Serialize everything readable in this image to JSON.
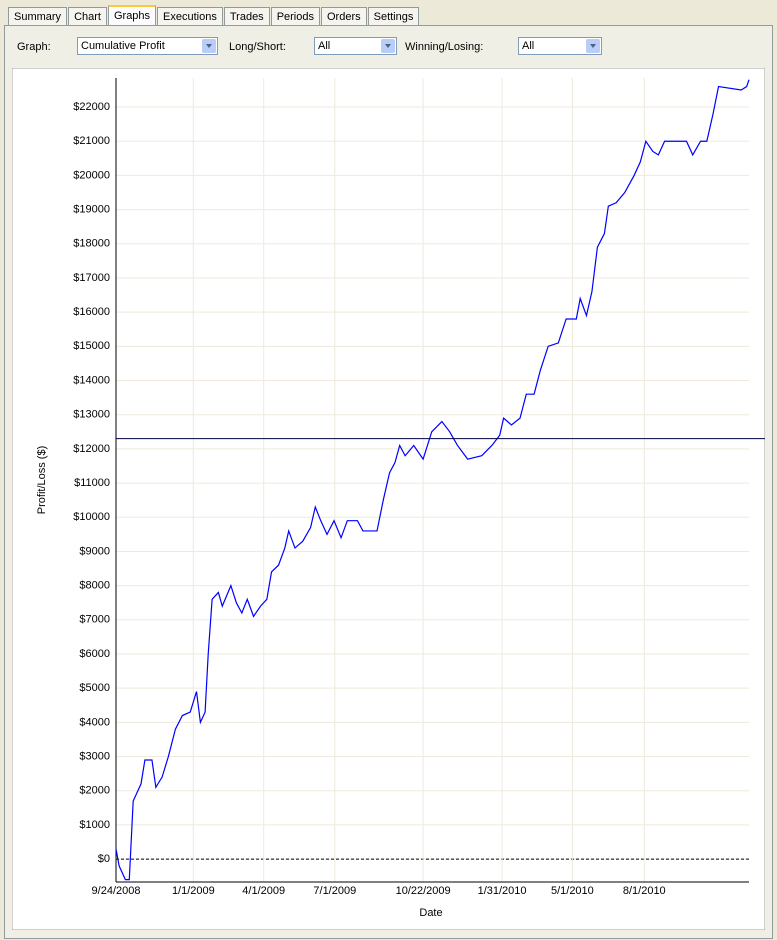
{
  "tabs": [
    "Summary",
    "Chart",
    "Graphs",
    "Executions",
    "Trades",
    "Periods",
    "Orders",
    "Settings"
  ],
  "active_tab": 2,
  "toolbar": {
    "graph_label": "Graph:",
    "graph_value": "Cumulative Profit",
    "long_short_label": "Long/Short:",
    "long_short_value": "All",
    "winning_losing_label": "Winning/Losing:",
    "winning_losing_value": "All"
  },
  "chart_data": {
    "type": "line",
    "x_label": "Date",
    "y_label": "Profit/Loss ($)",
    "xlim": [
      "9/24/2008",
      "12/13/2010"
    ],
    "xticks": [
      "9/24/2008",
      "1/1/2009",
      "4/1/2009",
      "7/1/2009",
      "10/22/2009",
      "1/31/2010",
      "5/1/2010",
      "8/1/2010"
    ],
    "ylim": [
      -670,
      22850
    ],
    "yticks": [
      {
        "value": 0,
        "label": "$0"
      },
      {
        "value": 1000,
        "label": "$1000"
      },
      {
        "value": 2000,
        "label": "$2000"
      },
      {
        "value": 3000,
        "label": "$3000"
      },
      {
        "value": 4000,
        "label": "$4000"
      },
      {
        "value": 5000,
        "label": "$5000"
      },
      {
        "value": 6000,
        "label": "$6000"
      },
      {
        "value": 7000,
        "label": "$7000"
      },
      {
        "value": 8000,
        "label": "$8000"
      },
      {
        "value": 9000,
        "label": "$9000"
      },
      {
        "value": 10000,
        "label": "$10000"
      },
      {
        "value": 11000,
        "label": "$11000"
      },
      {
        "value": 12000,
        "label": "$12000"
      },
      {
        "value": 13000,
        "label": "$13000"
      },
      {
        "value": 14000,
        "label": "$14000"
      },
      {
        "value": 15000,
        "label": "$15000"
      },
      {
        "value": 16000,
        "label": "$16000"
      },
      {
        "value": 17000,
        "label": "$17000"
      },
      {
        "value": 18000,
        "label": "$18000"
      },
      {
        "value": 19000,
        "label": "$19000"
      },
      {
        "value": 20000,
        "label": "$20000"
      },
      {
        "value": 21000,
        "label": "$21000"
      },
      {
        "value": 22000,
        "label": "$22000"
      }
    ],
    "grid": true,
    "average": 12300,
    "average_color": "#000040",
    "zero_line": true,
    "series": [
      {
        "color": "#0000ff",
        "x": [
          "9/24/2008",
          "9/28/2008",
          "10/6/2008",
          "10/11/2008",
          "10/16/2008",
          "10/26/2008",
          "10/31/2008",
          "11/9/2008",
          "11/14/2008",
          "11/22/2008",
          "11/30/2008",
          "12/9/2008",
          "12/18/2008",
          "12/28/2008",
          "1/5/2009",
          "1/10/2009",
          "1/16/2009",
          "1/20/2009",
          "1/25/2009",
          "2/2/2009",
          "2/7/2009",
          "2/18/2009",
          "2/25/2009",
          "3/4/2009",
          "3/11/2009",
          "3/19/2009",
          "3/28/2009",
          "4/5/2009",
          "4/11/2009",
          "4/20/2009",
          "4/28/2009",
          "5/3/2009",
          "5/11/2009",
          "5/21/2009",
          "5/31/2009",
          "6/6/2009",
          "6/13/2009",
          "6/21/2009",
          "6/30/2009",
          "7/9/2009",
          "7/17/2009",
          "7/30/2009",
          "8/6/2009",
          "8/24/2009",
          "9/1/2009",
          "9/9/2009",
          "9/16/2009",
          "9/22/2009",
          "9/29/2009",
          "10/10/2009",
          "10/22/2009",
          "11/2/2009",
          "11/15/2009",
          "11/25/2009",
          "12/5/2009",
          "12/18/2009",
          "1/5/2010",
          "1/18/2010",
          "1/28/2010",
          "2/2/2010",
          "2/12/2010",
          "2/23/2010",
          "3/3/2010",
          "3/13/2010",
          "3/21/2010",
          "3/31/2010",
          "4/13/2010",
          "4/23/2010",
          "5/6/2010",
          "5/11/2010",
          "5/19/2010",
          "5/26/2010",
          "6/2/2010",
          "6/11/2010",
          "6/16/2010",
          "6/26/2010",
          "7/7/2010",
          "7/19/2010",
          "7/27/2010",
          "8/3/2010",
          "8/12/2010",
          "8/19/2010",
          "8/27/2010",
          "9/24/2010",
          "10/2/2010",
          "10/12/2010",
          "10/20/2010",
          "10/28/2010",
          "11/4/2010",
          "12/3/2010",
          "12/10/2010",
          "12/13/2010"
        ],
        "values": [
          300,
          -200,
          -600,
          -600,
          1700,
          2200,
          2900,
          2900,
          2100,
          2400,
          3000,
          3800,
          4200,
          4300,
          4900,
          4000,
          4300,
          6000,
          7600,
          7800,
          7400,
          8000,
          7500,
          7200,
          7600,
          7100,
          7400,
          7600,
          8400,
          8600,
          9100,
          9600,
          9100,
          9300,
          9700,
          10300,
          9900,
          9500,
          9900,
          9400,
          9900,
          9900,
          9600,
          9600,
          10500,
          11300,
          11600,
          12100,
          11800,
          12100,
          11700,
          12500,
          12800,
          12500,
          12100,
          11700,
          11800,
          12100,
          12400,
          12900,
          12700,
          12900,
          13600,
          13600,
          14300,
          15000,
          15100,
          15800,
          15800,
          16400,
          15900,
          16600,
          17900,
          18300,
          19100,
          19200,
          19500,
          20000,
          20400,
          21000,
          20700,
          20600,
          21000,
          21000,
          20600,
          21000,
          21000,
          21800,
          22600,
          22500,
          22600,
          22800
        ]
      }
    ]
  }
}
